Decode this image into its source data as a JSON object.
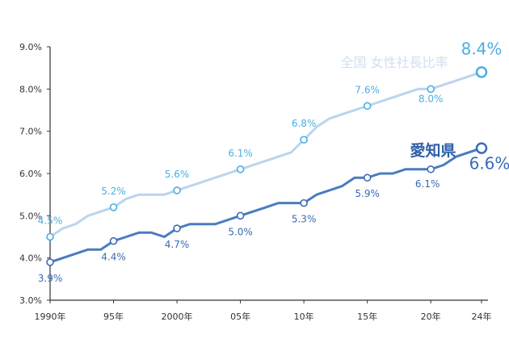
{
  "chart_data": {
    "type": "line",
    "x_ticks": [
      "1990年",
      "95年",
      "2000年",
      "05年",
      "10年",
      "15年",
      "20年",
      "24年"
    ],
    "y_ticks": [
      "9.0%",
      "8.0%",
      "7.0%",
      "6.0%",
      "5.0%",
      "4.0%",
      "3.0%"
    ],
    "ylim": [
      3.0,
      9.0
    ],
    "xlim": [
      1990,
      2024
    ],
    "grid": false,
    "series": [
      {
        "name": "全国 女性社長比率",
        "color": "#bcd4ee",
        "label_color": "#4aaee2",
        "x": [
          1990,
          1991,
          1992,
          1993,
          1994,
          1995,
          1996,
          1997,
          1998,
          1999,
          2000,
          2001,
          2002,
          2003,
          2004,
          2005,
          2006,
          2007,
          2008,
          2009,
          2010,
          2011,
          2012,
          2013,
          2014,
          2015,
          2016,
          2017,
          2018,
          2019,
          2020,
          2021,
          2022,
          2023,
          2024
        ],
        "values": [
          4.5,
          4.7,
          4.8,
          5.0,
          5.1,
          5.2,
          5.4,
          5.5,
          5.5,
          5.5,
          5.6,
          5.7,
          5.8,
          5.9,
          6.0,
          6.1,
          6.2,
          6.3,
          6.4,
          6.5,
          6.8,
          7.1,
          7.3,
          7.4,
          7.5,
          7.6,
          7.7,
          7.8,
          7.9,
          8.0,
          8.0,
          8.1,
          8.2,
          8.3,
          8.4
        ],
        "labeled_points": [
          {
            "x": 1990,
            "y": 4.5,
            "label": "4.5%"
          },
          {
            "x": 1995,
            "y": 5.2,
            "label": "5.2%"
          },
          {
            "x": 2000,
            "y": 5.6,
            "label": "5.6%"
          },
          {
            "x": 2005,
            "y": 6.1,
            "label": "6.1%"
          },
          {
            "x": 2010,
            "y": 6.8,
            "label": "6.8%"
          },
          {
            "x": 2015,
            "y": 7.6,
            "label": "7.6%"
          },
          {
            "x": 2020,
            "y": 8.0,
            "label": "8.0%"
          },
          {
            "x": 2024,
            "y": 8.4,
            "label": "8.4%"
          }
        ]
      },
      {
        "name": "愛知県",
        "color": "#4a7cc0",
        "label_color": "#3a6bb5",
        "x": [
          1990,
          1991,
          1992,
          1993,
          1994,
          1995,
          1996,
          1997,
          1998,
          1999,
          2000,
          2001,
          2002,
          2003,
          2004,
          2005,
          2006,
          2007,
          2008,
          2009,
          2010,
          2011,
          2012,
          2013,
          2014,
          2015,
          2016,
          2017,
          2018,
          2019,
          2020,
          2021,
          2022,
          2023,
          2024
        ],
        "values": [
          3.9,
          4.0,
          4.1,
          4.2,
          4.2,
          4.4,
          4.5,
          4.6,
          4.6,
          4.5,
          4.7,
          4.8,
          4.8,
          4.8,
          4.9,
          5.0,
          5.1,
          5.2,
          5.3,
          5.3,
          5.3,
          5.5,
          5.6,
          5.7,
          5.9,
          5.9,
          6.0,
          6.0,
          6.1,
          6.1,
          6.1,
          6.2,
          6.4,
          6.5,
          6.6
        ],
        "labeled_points": [
          {
            "x": 1990,
            "y": 3.9,
            "label": "3.9%"
          },
          {
            "x": 1995,
            "y": 4.4,
            "label": "4.4%"
          },
          {
            "x": 2000,
            "y": 4.7,
            "label": "4.7%"
          },
          {
            "x": 2005,
            "y": 5.0,
            "label": "5.0%"
          },
          {
            "x": 2010,
            "y": 5.3,
            "label": "5.3%"
          },
          {
            "x": 2015,
            "y": 5.9,
            "label": "5.9%"
          },
          {
            "x": 2020,
            "y": 6.1,
            "label": "6.1%"
          },
          {
            "x": 2024,
            "y": 6.6,
            "label": "6.6%"
          }
        ]
      }
    ]
  }
}
